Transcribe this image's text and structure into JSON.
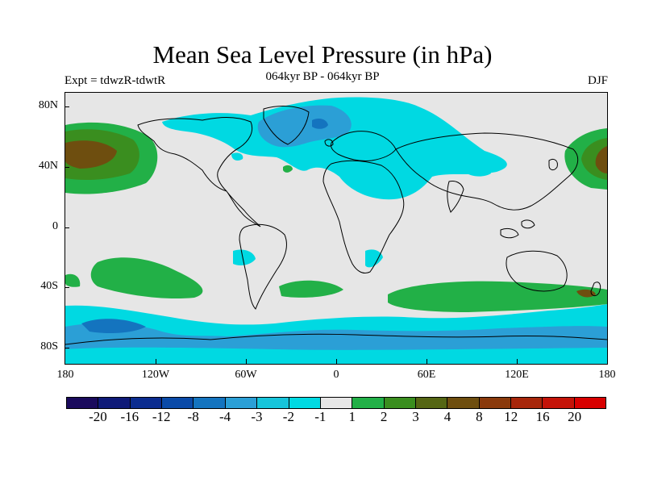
{
  "title": "Mean Sea Level Pressure (in hPa)",
  "subtitle_left": "Expt = tdwzR-tdwtR",
  "subtitle_center": "064kyr BP - 064kyr BP",
  "subtitle_right": "DJF",
  "y_axis_labels": [
    "80N",
    "40N",
    "0",
    "40S",
    "80S"
  ],
  "x_axis_labels": [
    "180",
    "120W",
    "60W",
    "0",
    "60E",
    "120E",
    "180"
  ],
  "colorbar": {
    "colors": [
      "#1a0a5c",
      "#0f1a78",
      "#0b2c8f",
      "#0a4aa8",
      "#1474bf",
      "#2b9fd6",
      "#16c4da",
      "#00d9e2",
      "#e6e6e6",
      "#22b047",
      "#3a8e1f",
      "#556614",
      "#6e4e0f",
      "#8a3a0c",
      "#a7260a",
      "#c41308",
      "#d80000"
    ],
    "labels": [
      "-20",
      "-16",
      "-12",
      "-8",
      "-4",
      "-3",
      "-2",
      "-1",
      "1",
      "2",
      "3",
      "4",
      "8",
      "12",
      "16",
      "20"
    ]
  },
  "map_colors": {
    "background": "#e6e6e6",
    "negative_light": "#00d9e2",
    "negative_mid": "#2b9fd6",
    "negative_dark": "#1474bf",
    "positive_light": "#22b047",
    "positive_mid": "#3a8e1f",
    "positive_dark": "#6e4e0f",
    "coastline": "#000000"
  }
}
